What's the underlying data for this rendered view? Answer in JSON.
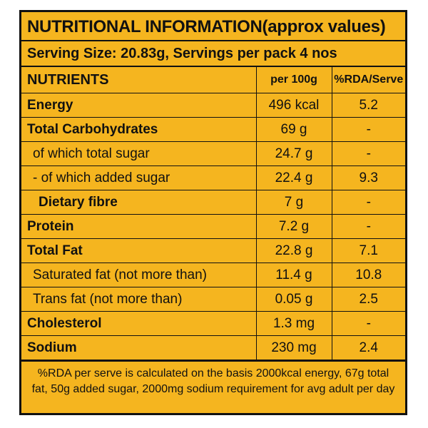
{
  "label": {
    "title": "NUTRITIONAL INFORMATION(approx values)",
    "serving_line": "Serving Size: 20.83g, Servings per pack 4 nos",
    "columns": {
      "nutrient": "NUTRIENTS",
      "per100": "per 100g",
      "rda": "%RDA/Serve"
    },
    "rows": [
      {
        "name": "Energy",
        "per100": "496 kcal",
        "rda": "5.2"
      },
      {
        "name": "Total Carbohydrates",
        "per100": "69 g",
        "rda": "-"
      },
      {
        "name": "of which total sugar",
        "per100": "24.7 g",
        "rda": "-"
      },
      {
        "name": "- of which added sugar",
        "per100": "22.4 g",
        "rda": "9.3"
      },
      {
        "name": "Dietary fibre",
        "per100": "7 g",
        "rda": "-"
      },
      {
        "name": "Protein",
        "per100": "7.2 g",
        "rda": "-"
      },
      {
        "name": "Total Fat",
        "per100": "22.8 g",
        "rda": "7.1"
      },
      {
        "name": "Saturated fat (not more than)",
        "per100": "11.4 g",
        "rda": "10.8"
      },
      {
        "name": "Trans fat (not more than)",
        "per100": "0.05 g",
        "rda": "2.5"
      },
      {
        "name": "Cholesterol",
        "per100": "1.3 mg",
        "rda": "-"
      },
      {
        "name": "Sodium",
        "per100": "230 mg",
        "rda": "2.4"
      }
    ],
    "footnote_line1": "%RDA per serve is calculated on the basis 2000kcal energy, 67g total",
    "footnote_line2": "fat, 50g added sugar, 2000mg sodium requirement for avg adult per day"
  }
}
